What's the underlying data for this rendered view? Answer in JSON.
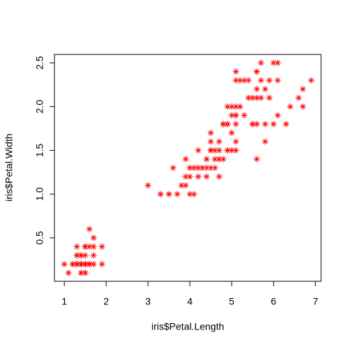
{
  "chart_data": {
    "type": "scatter",
    "x_label": "iris$Petal.Length",
    "y_label": "iris$Petal.Width",
    "color": "#ff0000",
    "marker": "asterisk",
    "xlim": [
      0.764,
      7.136
    ],
    "ylim": [
      0.004,
      2.596
    ],
    "xticks": [
      1,
      2,
      3,
      4,
      5,
      6,
      7
    ],
    "yticks": [
      0.5,
      {
        "value": 1,
        "label": "1.0"
      },
      1.5,
      {
        "value": 2,
        "label": "2.0"
      },
      2.5
    ],
    "x": [
      1.4,
      1.4,
      1.3,
      1.5,
      1.4,
      1.7,
      1.4,
      1.5,
      1.4,
      1.5,
      1.5,
      1.6,
      1.4,
      1.1,
      1.2,
      1.5,
      1.3,
      1.4,
      1.7,
      1.5,
      1.7,
      1.5,
      1.0,
      1.7,
      1.9,
      1.6,
      1.6,
      1.5,
      1.4,
      1.6,
      1.6,
      1.5,
      1.5,
      1.4,
      1.5,
      1.2,
      1.3,
      1.4,
      1.3,
      1.5,
      1.3,
      1.3,
      1.3,
      1.6,
      1.9,
      1.4,
      1.6,
      1.4,
      1.5,
      1.4,
      4.7,
      4.5,
      4.9,
      4.0,
      4.6,
      4.5,
      4.7,
      3.3,
      4.6,
      3.9,
      3.5,
      4.2,
      4.0,
      4.7,
      3.6,
      4.4,
      4.5,
      4.1,
      4.5,
      3.9,
      4.8,
      4.0,
      4.9,
      4.7,
      4.3,
      4.4,
      4.8,
      5.0,
      4.5,
      3.5,
      3.8,
      3.7,
      3.9,
      5.1,
      4.5,
      4.5,
      4.7,
      4.4,
      4.1,
      4.0,
      4.4,
      4.6,
      4.0,
      3.3,
      4.2,
      4.2,
      4.2,
      4.3,
      3.0,
      4.1,
      6.0,
      5.1,
      5.9,
      5.6,
      5.8,
      6.6,
      4.5,
      6.3,
      5.8,
      6.1,
      5.1,
      5.3,
      5.5,
      5.0,
      5.1,
      5.3,
      5.5,
      6.7,
      6.9,
      5.0,
      5.7,
      4.9,
      6.7,
      4.9,
      5.7,
      6.0,
      4.8,
      4.9,
      5.6,
      5.8,
      6.1,
      6.4,
      5.6,
      5.1,
      5.6,
      6.1,
      5.6,
      5.5,
      4.8,
      5.4,
      5.6,
      5.1,
      5.1,
      5.9,
      5.7,
      5.2,
      5.0,
      5.2,
      5.4,
      5.1
    ],
    "values": [
      0.2,
      0.2,
      0.2,
      0.2,
      0.2,
      0.4,
      0.3,
      0.2,
      0.2,
      0.1,
      0.2,
      0.2,
      0.1,
      0.1,
      0.2,
      0.4,
      0.4,
      0.3,
      0.3,
      0.3,
      0.2,
      0.4,
      0.2,
      0.5,
      0.2,
      0.2,
      0.4,
      0.2,
      0.2,
      0.2,
      0.2,
      0.4,
      0.1,
      0.2,
      0.2,
      0.2,
      0.2,
      0.1,
      0.2,
      0.2,
      0.3,
      0.3,
      0.2,
      0.6,
      0.4,
      0.3,
      0.2,
      0.2,
      0.2,
      0.2,
      1.4,
      1.5,
      1.5,
      1.3,
      1.5,
      1.3,
      1.6,
      1.0,
      1.3,
      1.4,
      1.0,
      1.5,
      1.0,
      1.4,
      1.3,
      1.4,
      1.5,
      1.0,
      1.5,
      1.1,
      1.8,
      1.3,
      1.5,
      1.2,
      1.3,
      1.4,
      1.4,
      1.7,
      1.5,
      1.0,
      1.1,
      1.0,
      1.2,
      1.6,
      1.5,
      1.6,
      1.5,
      1.3,
      1.3,
      1.3,
      1.2,
      1.4,
      1.2,
      1.0,
      1.3,
      1.2,
      1.3,
      1.3,
      1.1,
      1.3,
      2.5,
      1.9,
      2.1,
      1.8,
      2.2,
      2.1,
      1.7,
      1.8,
      1.8,
      2.5,
      2.0,
      1.9,
      2.1,
      2.0,
      2.4,
      2.3,
      1.8,
      2.2,
      2.3,
      1.5,
      2.3,
      2.0,
      2.0,
      1.8,
      2.1,
      1.8,
      1.8,
      1.8,
      2.1,
      1.6,
      1.9,
      2.0,
      2.2,
      1.5,
      1.4,
      2.3,
      2.4,
      1.8,
      1.8,
      2.1,
      2.4,
      2.3,
      1.9,
      2.3,
      2.5,
      2.3,
      1.9,
      2.0,
      2.3,
      1.8
    ]
  }
}
